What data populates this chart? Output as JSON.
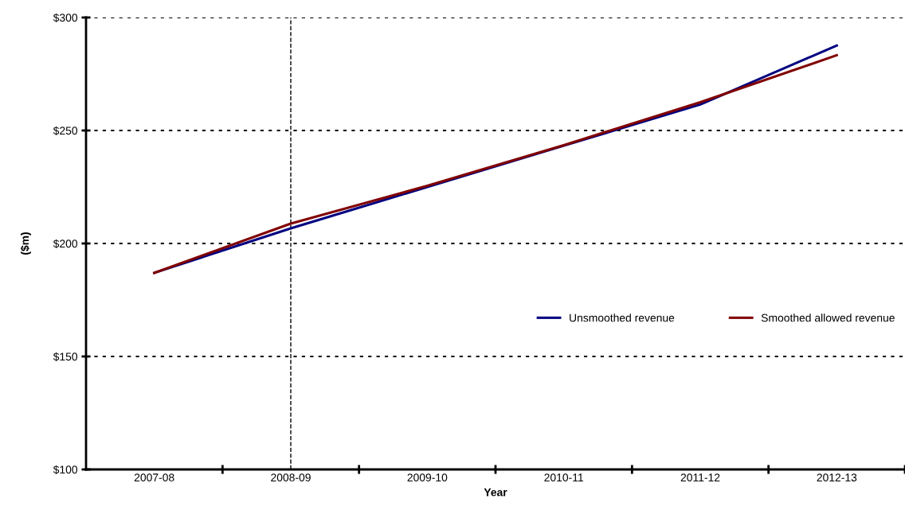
{
  "chart_data": {
    "type": "line",
    "xlabel": "Year",
    "ylabel": "($m)",
    "categories": [
      "2007-08",
      "2008-09",
      "2009-10",
      "2010-11",
      "2011-12",
      "2012-13"
    ],
    "series": [
      {
        "name": "Unsmoothed revenue",
        "color": "#000080",
        "values": [
          187,
          206.7,
          225,
          243.3,
          261.5,
          287.6
        ]
      },
      {
        "name": "Smoothed allowed revenue",
        "color": "#800000",
        "values": [
          187,
          208.8,
          225.5,
          243.5,
          262.5,
          283.3
        ]
      }
    ],
    "ylim": [
      100,
      300
    ],
    "yticks": [
      {
        "value": 100,
        "label": "$100"
      },
      {
        "value": 150,
        "label": "$150"
      },
      {
        "value": 200,
        "label": "$200"
      },
      {
        "value": 250,
        "label": "$250"
      },
      {
        "value": 300,
        "label": "$300"
      }
    ],
    "grid": "y",
    "legend": "bottom right",
    "marker": "none",
    "line_style": "solid",
    "ref_lines": [
      {
        "axis": "x",
        "value": "2008-09",
        "color": "#000000",
        "line_style": "dashed"
      }
    ]
  }
}
